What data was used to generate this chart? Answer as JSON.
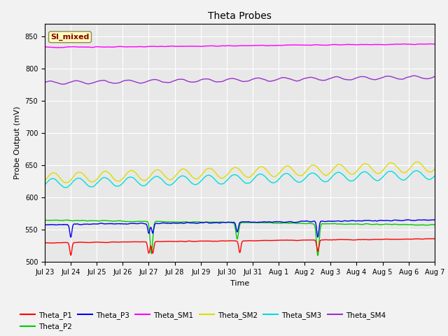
{
  "title": "Theta Probes",
  "xlabel": "Time",
  "ylabel": "Probe Output (mV)",
  "ylim": [
    500,
    870
  ],
  "yticks": [
    500,
    550,
    600,
    650,
    700,
    750,
    800,
    850
  ],
  "annotation_text": "SI_mixed",
  "annotation_color": "#8B0000",
  "annotation_bg": "#FFFFC0",
  "plot_bg_color": "#E8E8E8",
  "fig_bg_color": "#F2F2F2",
  "series_colors": {
    "Theta_P1": "#FF0000",
    "Theta_P2": "#00CC00",
    "Theta_P3": "#0000EE",
    "Theta_SM1": "#FF00FF",
    "Theta_SM2": "#DDDD00",
    "Theta_SM3": "#00DDDD",
    "Theta_SM4": "#9933CC"
  },
  "xtick_labels": [
    "Jul 23",
    "Jul 24",
    "Jul 25",
    "Jul 26",
    "Jul 27",
    "Jul 28",
    "Jul 29",
    "Jul 30",
    "Jul 31",
    "Aug 1",
    "Aug 2",
    "Aug 3",
    "Aug 4",
    "Aug 5",
    "Aug 6",
    "Aug 7"
  ],
  "xtick_positions": [
    0,
    1,
    2,
    3,
    4,
    5,
    6,
    7,
    8,
    9,
    10,
    11,
    12,
    13,
    14,
    15
  ]
}
